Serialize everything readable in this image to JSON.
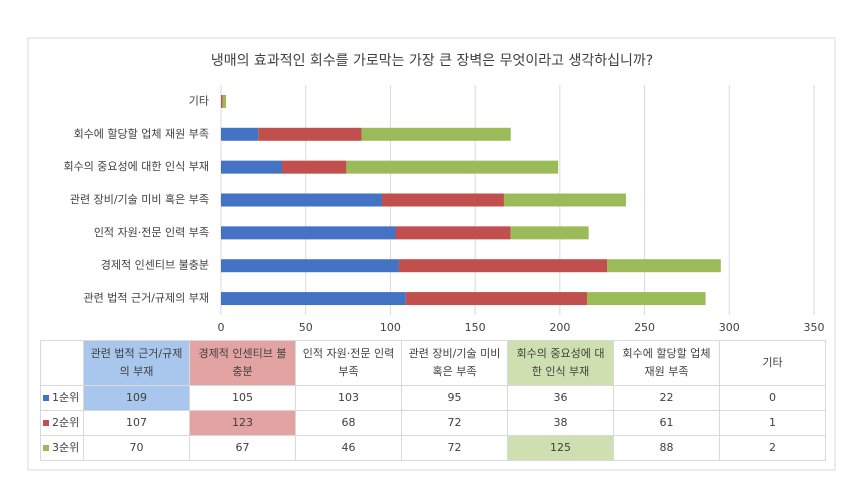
{
  "chart_data": {
    "type": "stacked_barh",
    "title": "냉매의 효과적인 회수를 가로막는 가장 큰 장벽은 무엇이라고 생각하십니까?",
    "categories": [
      "관련 법적 근거/규제의 부재",
      "경제적 인센티브 불충분",
      "인적 자원·전문 인력 부족",
      "관련 장비/기술 미비 혹은 부족",
      "회수의 중요성에 대한 인식 부재",
      "회수에 할당할 업체 재원 부족",
      "기타"
    ],
    "series": [
      {
        "name": "1순위",
        "color": "#4472c4",
        "values": [
          109,
          105,
          103,
          95,
          36,
          22,
          0
        ]
      },
      {
        "name": "2순위",
        "color": "#c0504d",
        "values": [
          107,
          123,
          68,
          72,
          38,
          61,
          1
        ]
      },
      {
        "name": "3순위",
        "color": "#9bbb59",
        "values": [
          70,
          67,
          46,
          72,
          125,
          88,
          2
        ]
      }
    ],
    "xlim": [
      0,
      350
    ],
    "xticks": [
      0,
      50,
      100,
      150,
      200,
      250,
      300,
      350
    ],
    "grid": true
  }
}
